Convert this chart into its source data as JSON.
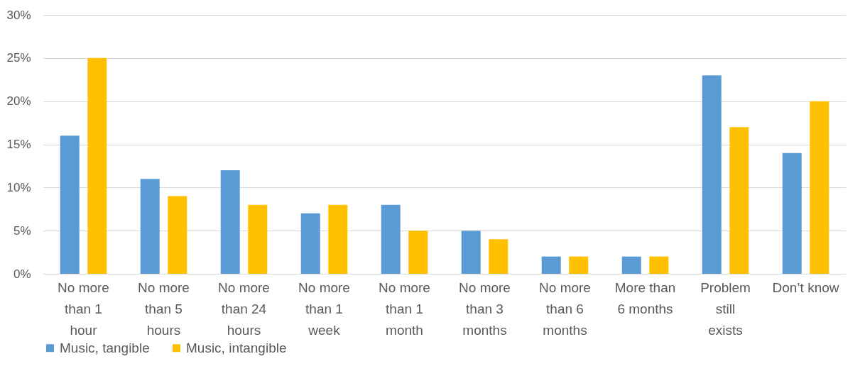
{
  "chart_data": {
    "type": "bar",
    "categories": [
      "No more than 1 hour",
      "No more than 5 hours",
      "No more than 24 hours",
      "No more than 1 week",
      "No more than 1 month",
      "No more than 3 months",
      "No more than 6 months",
      "More than 6 months",
      "Problem still exists",
      "Don’t know"
    ],
    "series": [
      {
        "name": "Music, tangible",
        "color": "#5b9bd5",
        "values": [
          16,
          11,
          12,
          7,
          8,
          5,
          2,
          2,
          23,
          14
        ]
      },
      {
        "name": "Music, intangible",
        "color": "#ffc000",
        "values": [
          25,
          9,
          8,
          8,
          5,
          4,
          2,
          2,
          17,
          20
        ]
      }
    ],
    "ylim": [
      0,
      30
    ],
    "yticks": [
      {
        "value": 0,
        "label": "0%"
      },
      {
        "value": 5,
        "label": "5%"
      },
      {
        "value": 10,
        "label": "10%"
      },
      {
        "value": 15,
        "label": "15%"
      },
      {
        "value": 20,
        "label": "20%"
      },
      {
        "value": 25,
        "label": "25%"
      },
      {
        "value": 30,
        "label": "30%"
      }
    ],
    "grid": "y",
    "legend": "bottom"
  }
}
